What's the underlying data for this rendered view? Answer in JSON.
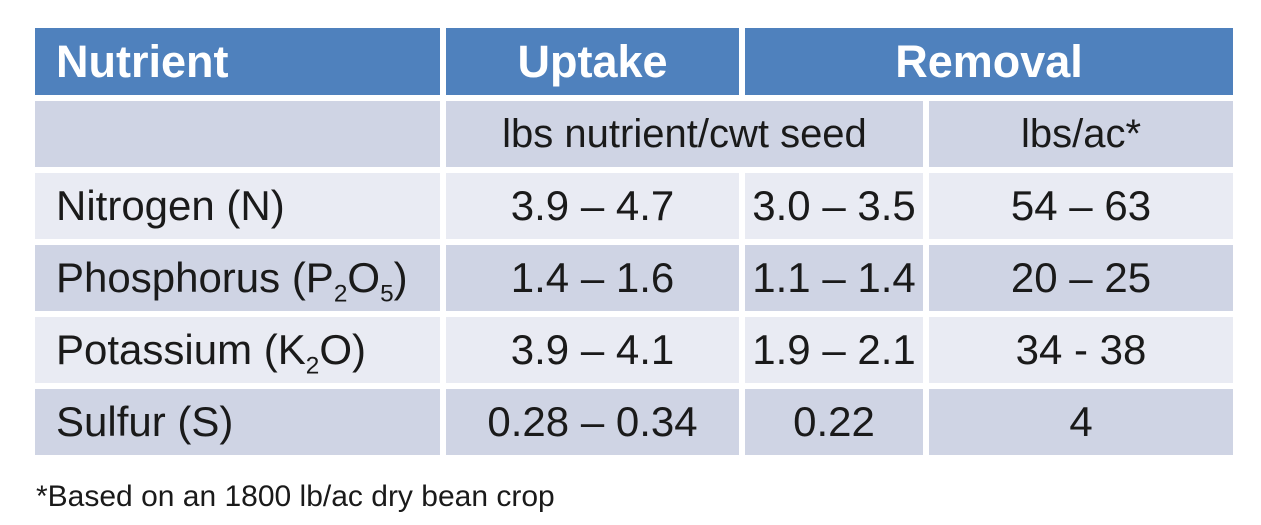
{
  "colors": {
    "background": "#FFFFFF",
    "header_bg": "#4F81BD",
    "header_text": "#FFFFFF",
    "band_dark": "#CFD4E4",
    "band_light": "#E9EBF3",
    "body_text": "#1A1A1A"
  },
  "chart_data": {
    "type": "table",
    "title": "",
    "header_row": [
      "Nutrient",
      "Uptake",
      "Removal"
    ],
    "units_row": [
      "",
      "lbs nutrient/cwt seed",
      "lbs/ac*"
    ],
    "rows": [
      [
        "Nitrogen (N)",
        "3.9 – 4.7",
        "3.0 – 3.5",
        "54 – 63"
      ],
      [
        "Phosphorus (P~2~O~5~)",
        "1.4 – 1.6",
        "1.1 – 1.4",
        "20 – 25"
      ],
      [
        "Potassium (K~2~O)",
        "3.9 – 4.1",
        "1.9 – 2.1",
        "34 - 38"
      ],
      [
        "Sulfur (S)",
        "0.28 – 0.34",
        "0.22",
        "4"
      ]
    ],
    "footnote": "*Based on an 1800 lb/ac dry bean crop",
    "layout": {
      "removal_header_colspan": 2,
      "units_cwt_colspan": 2,
      "row_banding": "units row dark, then alternating light/dark",
      "grid": "white gaps between cells, no outer border"
    }
  }
}
